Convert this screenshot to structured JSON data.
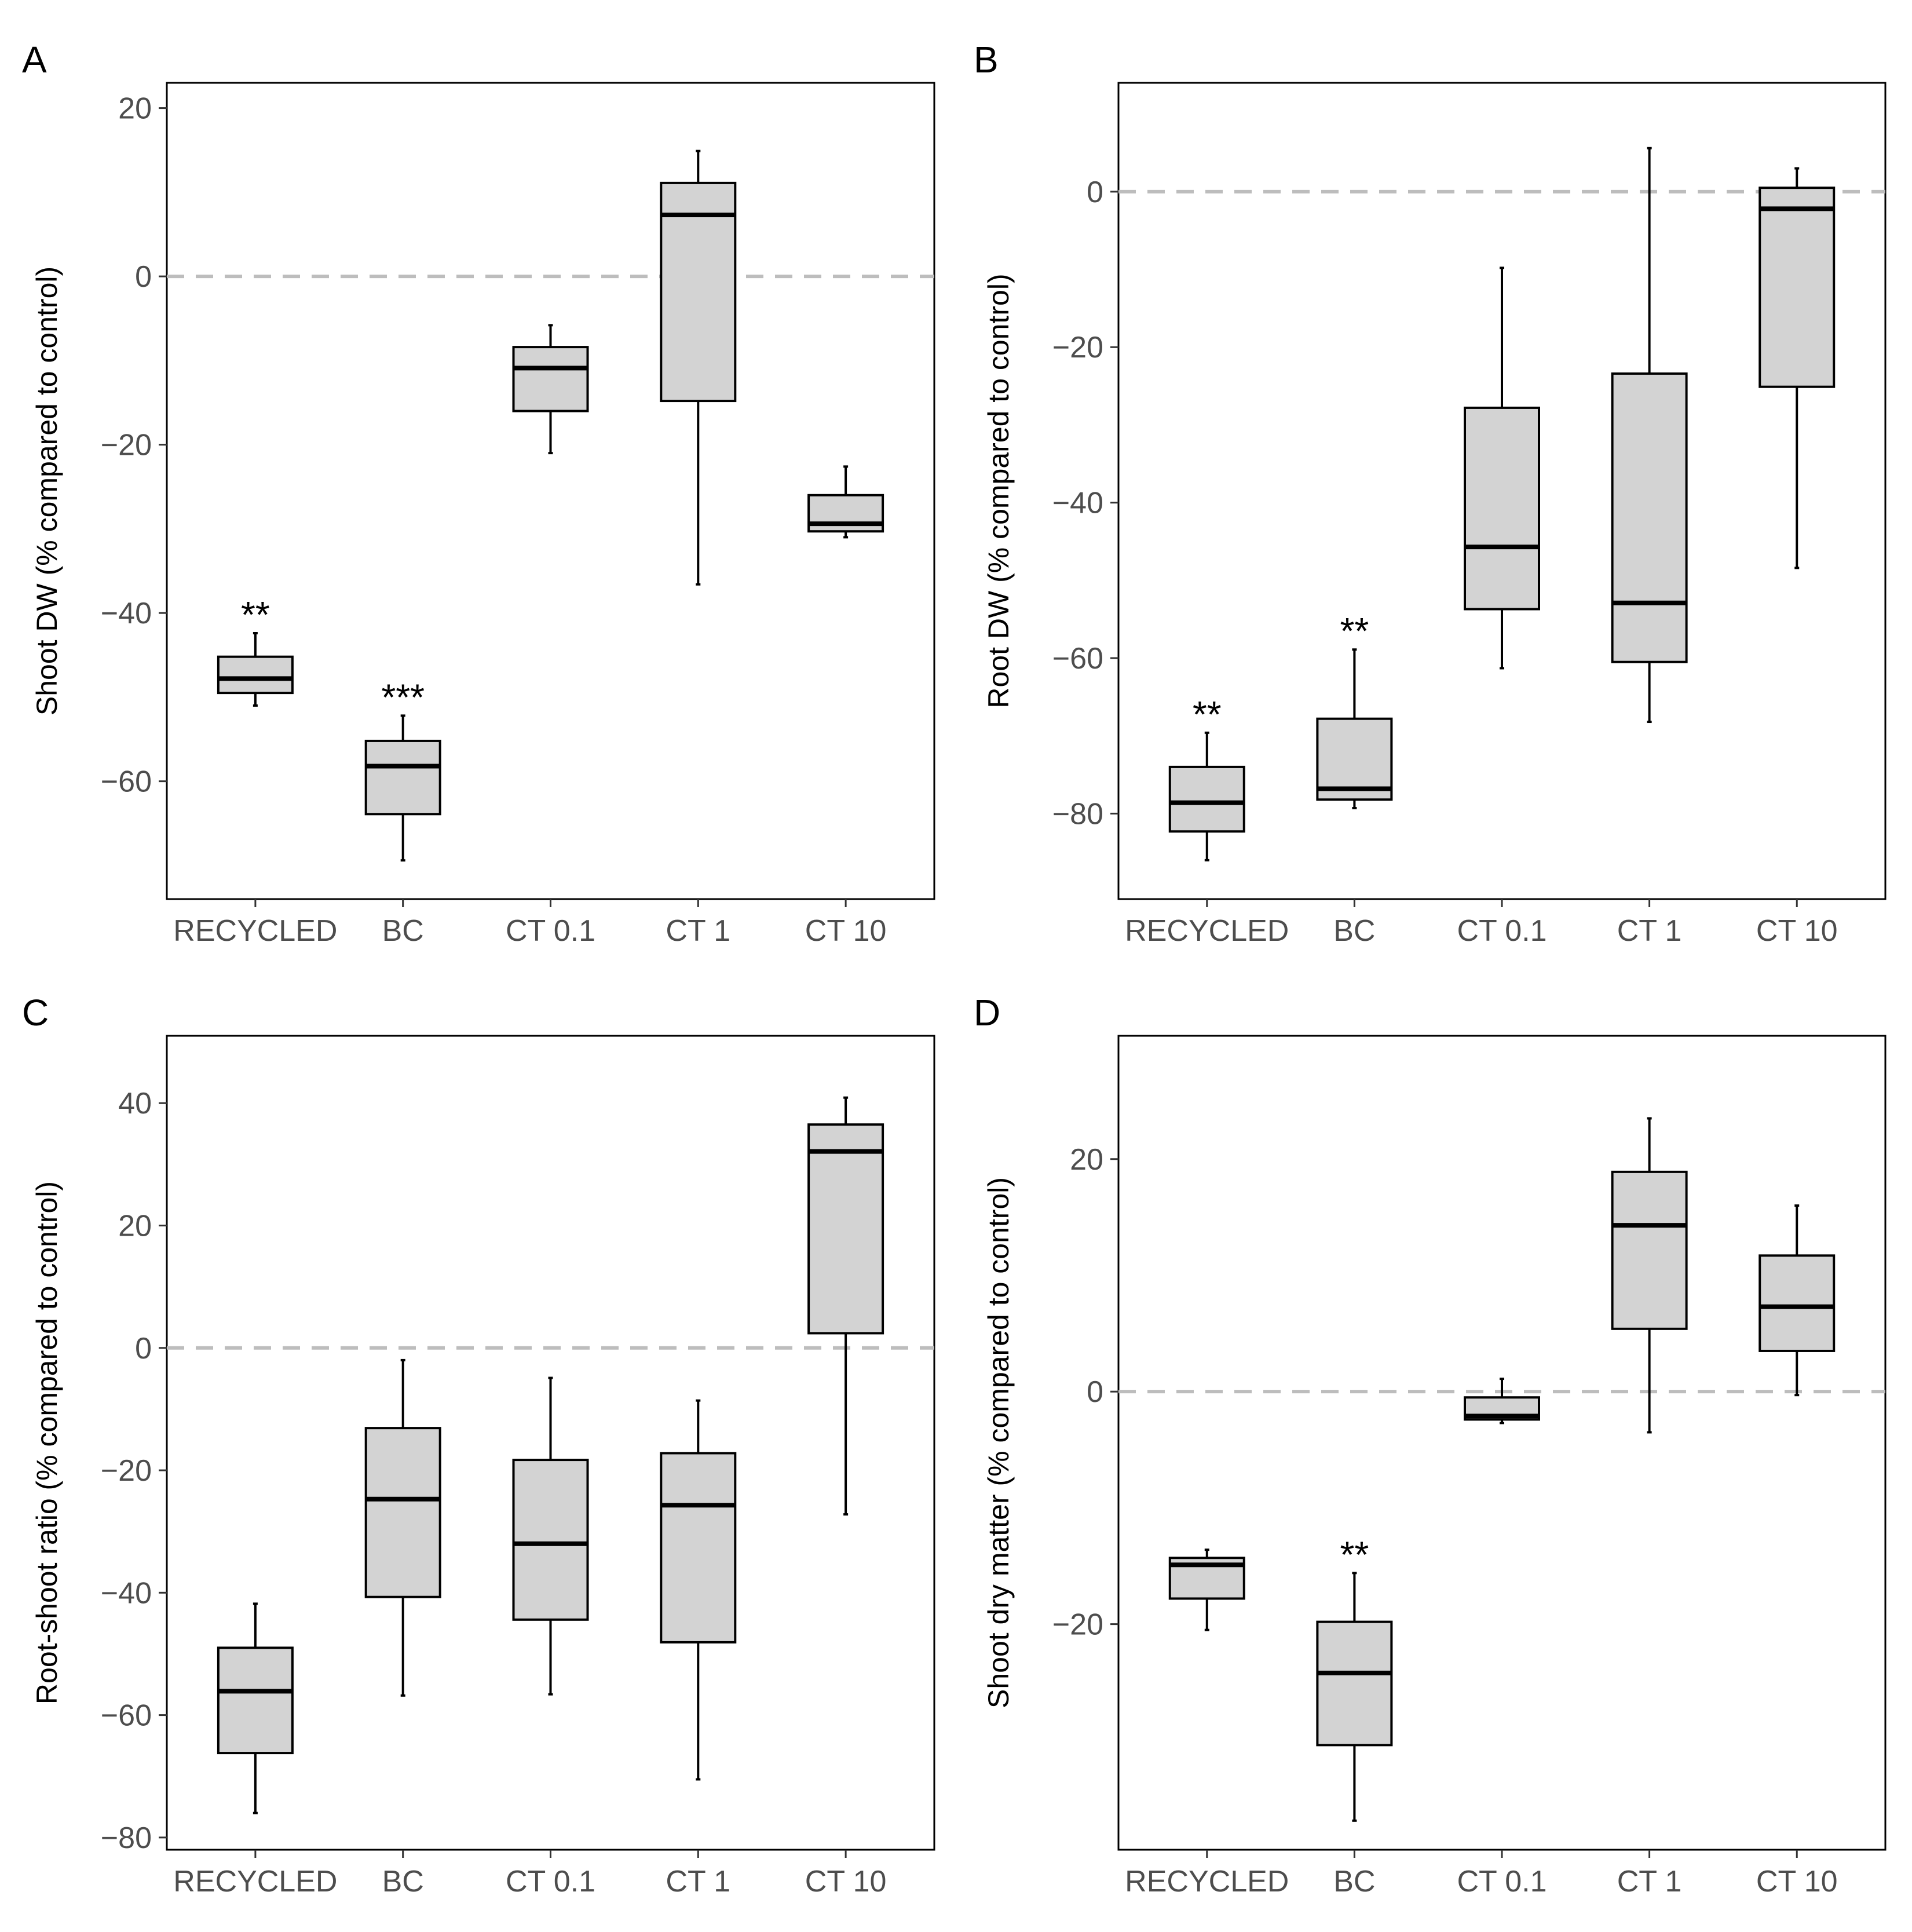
{
  "colors": {
    "box_fill": "#d3d3d3",
    "box_stroke": "#000000",
    "reference_line": "#bdbdbd",
    "tick_label": "#4d4d4d",
    "panel_border": "#000000"
  },
  "chart_data": [
    {
      "panel": "A",
      "type": "boxplot",
      "title": "",
      "xlabel": "",
      "ylabel": "Shoot DW (% compared to control)",
      "ylim": [
        -74,
        23
      ],
      "yticks": [
        20,
        0,
        -20,
        -40,
        -60
      ],
      "ytick_labels": [
        "20",
        "0",
        "−20",
        "−40",
        "−60"
      ],
      "reference_line": 0,
      "categories": [
        "RECYCLED",
        "BC",
        "CT 0.1",
        "CT 1",
        "CT 10"
      ],
      "boxes": [
        {
          "min": -51,
          "q1": -49.5,
          "median": -47.8,
          "q3": -45.2,
          "max": -42.4,
          "sig": "**"
        },
        {
          "min": -69.4,
          "q1": -63.9,
          "median": -58.2,
          "q3": -55.2,
          "max": -52.2,
          "sig": "***"
        },
        {
          "min": -21,
          "q1": -16,
          "median": -10.9,
          "q3": -8.4,
          "max": -5.8,
          "sig": ""
        },
        {
          "min": -36.6,
          "q1": -14.8,
          "median": 7.3,
          "q3": 11.1,
          "max": 14.9,
          "sig": ""
        },
        {
          "min": -31,
          "q1": -30.3,
          "median": -29.4,
          "q3": -26,
          "max": -22.6,
          "sig": ""
        }
      ]
    },
    {
      "panel": "B",
      "type": "boxplot",
      "title": "",
      "xlabel": "",
      "ylabel": "Root DW (% compared to control)",
      "ylim": [
        -91,
        14
      ],
      "yticks": [
        0,
        -20,
        -40,
        -60,
        -80
      ],
      "ytick_labels": [
        "0",
        "−20",
        "−40",
        "−60",
        "−80"
      ],
      "reference_line": 0,
      "categories": [
        "RECYCLED",
        "BC",
        "CT 0.1",
        "CT 1",
        "CT 10"
      ],
      "boxes": [
        {
          "min": -86,
          "q1": -82.3,
          "median": -78.6,
          "q3": -74,
          "max": -69.6,
          "sig": "**"
        },
        {
          "min": -79.3,
          "q1": -78.2,
          "median": -76.8,
          "q3": -67.8,
          "max": -58.9,
          "sig": "**"
        },
        {
          "min": -61.3,
          "q1": -53.7,
          "median": -45.7,
          "q3": -27.8,
          "max": -9.8,
          "sig": ""
        },
        {
          "min": -68.2,
          "q1": -60.5,
          "median": -52.9,
          "q3": -23.4,
          "max": 5.6,
          "sig": ""
        },
        {
          "min": -48.4,
          "q1": -25.1,
          "median": -2.2,
          "q3": 0.5,
          "max": 3,
          "sig": ""
        }
      ]
    },
    {
      "panel": "C",
      "type": "boxplot",
      "title": "",
      "xlabel": "",
      "ylabel": "Root-shoot ratio (% compared to control)",
      "ylim": [
        -82,
        51
      ],
      "yticks": [
        40,
        20,
        0,
        -20,
        -40,
        -60,
        -80
      ],
      "ytick_labels": [
        "40",
        "20",
        "0",
        "−20",
        "−40",
        "−60",
        "−80"
      ],
      "reference_line": 0,
      "categories": [
        "RECYCLED",
        "BC",
        "CT 0.1",
        "CT 1",
        "CT 10"
      ],
      "boxes": [
        {
          "min": -76,
          "q1": -66.2,
          "median": -56.1,
          "q3": -49,
          "max": -41.8,
          "sig": ""
        },
        {
          "min": -56.8,
          "q1": -40.7,
          "median": -24.7,
          "q3": -13.1,
          "max": -2,
          "sig": ""
        },
        {
          "min": -56.6,
          "q1": -44.4,
          "median": -32,
          "q3": -18.3,
          "max": -4.9,
          "sig": ""
        },
        {
          "min": -70.5,
          "q1": -48.1,
          "median": -25.7,
          "q3": -17.2,
          "max": -8.6,
          "sig": ""
        },
        {
          "min": -27.2,
          "q1": 2.4,
          "median": 32.1,
          "q3": 36.5,
          "max": 40.9,
          "sig": ""
        }
      ]
    },
    {
      "panel": "D",
      "type": "boxplot",
      "title": "",
      "xlabel": "",
      "ylabel": "Shoot dry matter (% compared to control)",
      "ylim": [
        -39.4,
        30.6
      ],
      "yticks": [
        20,
        0,
        -20
      ],
      "ytick_labels": [
        "20",
        "0",
        "−20"
      ],
      "reference_line": 0,
      "categories": [
        "RECYCLED",
        "BC",
        "CT 0.1",
        "CT 1",
        "CT 10"
      ],
      "boxes": [
        {
          "min": -20.5,
          "q1": -17.8,
          "median": -14.9,
          "q3": -14.3,
          "max": -13.6,
          "sig": ""
        },
        {
          "min": -36.9,
          "q1": -30.4,
          "median": -24.2,
          "q3": -19.8,
          "max": -15.6,
          "sig": "**"
        },
        {
          "min": -2.7,
          "q1": -2.4,
          "median": -2.1,
          "q3": -0.5,
          "max": 1.1,
          "sig": ""
        },
        {
          "min": -3.5,
          "q1": 5.4,
          "median": 14.3,
          "q3": 18.9,
          "max": 23.5,
          "sig": ""
        },
        {
          "min": -0.3,
          "q1": 3.5,
          "median": 7.3,
          "q3": 11.7,
          "max": 16,
          "sig": ""
        }
      ]
    }
  ]
}
